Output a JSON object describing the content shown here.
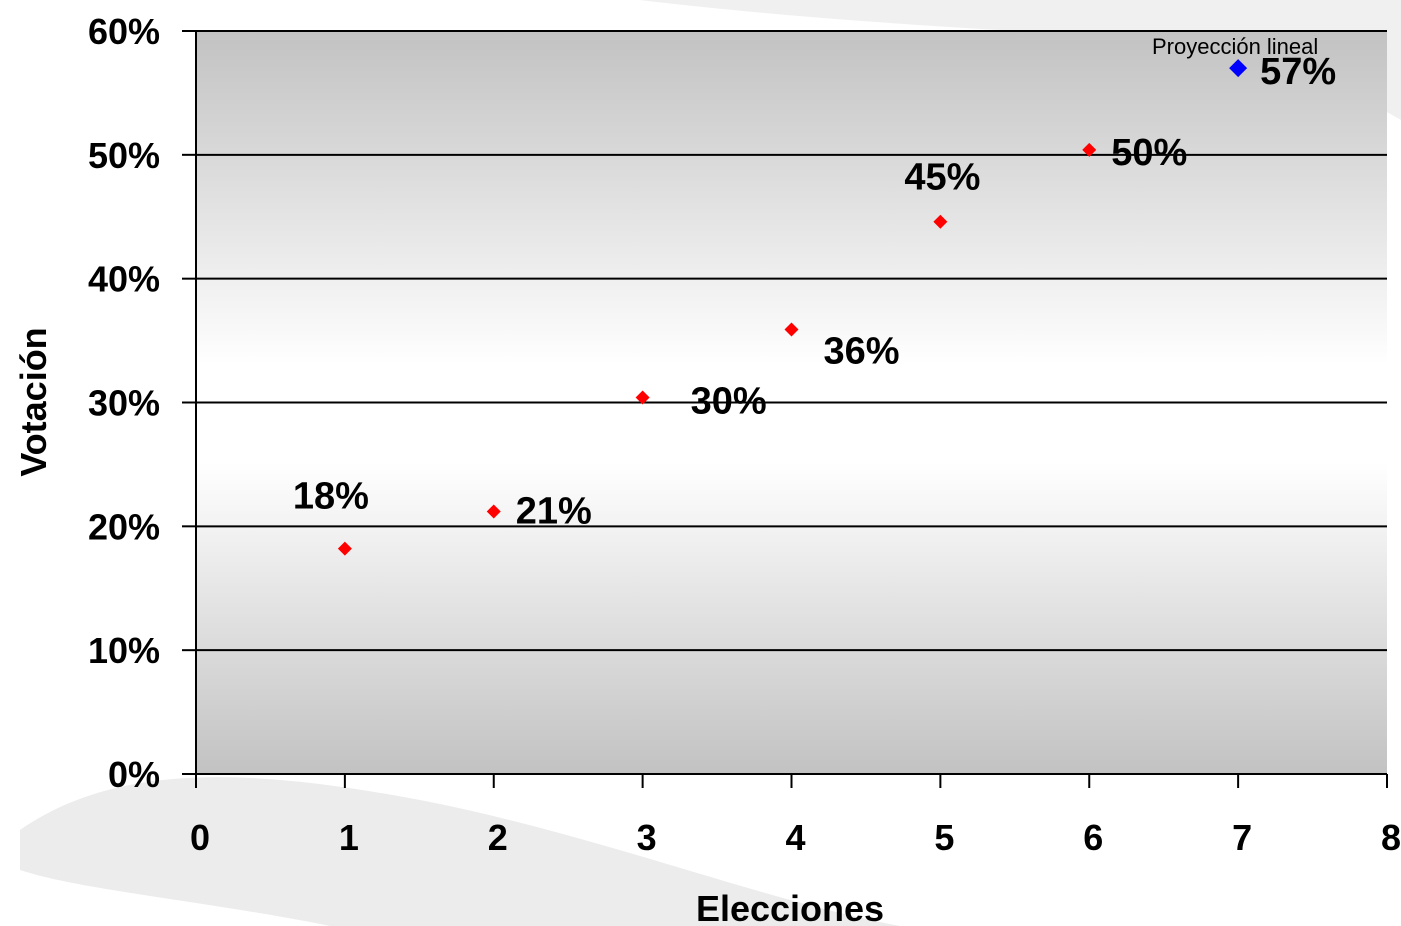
{
  "chart_data": {
    "type": "scatter",
    "xlabel": "Elecciones",
    "ylabel": "Votación",
    "xlim": [
      0,
      8
    ],
    "ylim": [
      0,
      60
    ],
    "x_ticks": [
      0,
      1,
      2,
      3,
      4,
      5,
      6,
      7,
      8
    ],
    "x_tick_labels": [
      "0",
      "1",
      "2",
      "3",
      "4",
      "5",
      "6",
      "7",
      "8"
    ],
    "y_ticks": [
      0,
      10,
      20,
      30,
      40,
      50,
      60
    ],
    "y_tick_labels": [
      "0%",
      "10%",
      "20%",
      "30%",
      "40%",
      "50%",
      "60%"
    ],
    "grid": "horizontal",
    "series": [
      {
        "color": "#ff0000",
        "marker": "diamond",
        "points": [
          {
            "x": 1,
            "y": 18.2,
            "label": "18%"
          },
          {
            "x": 2,
            "y": 21.2,
            "label": "21%"
          },
          {
            "x": 3,
            "y": 30.4,
            "label": "30%"
          },
          {
            "x": 4,
            "y": 35.9,
            "label": "36%"
          },
          {
            "x": 5,
            "y": 44.6,
            "label": "45%"
          },
          {
            "x": 6,
            "y": 50.4,
            "label": "50%"
          }
        ]
      },
      {
        "color": "#0000ff",
        "marker": "diamond",
        "points": [
          {
            "x": 7,
            "y": 57,
            "label": "57%"
          }
        ]
      }
    ],
    "annotations": [
      {
        "text": "Proyección lineal",
        "x": 7,
        "y": 57
      }
    ]
  }
}
